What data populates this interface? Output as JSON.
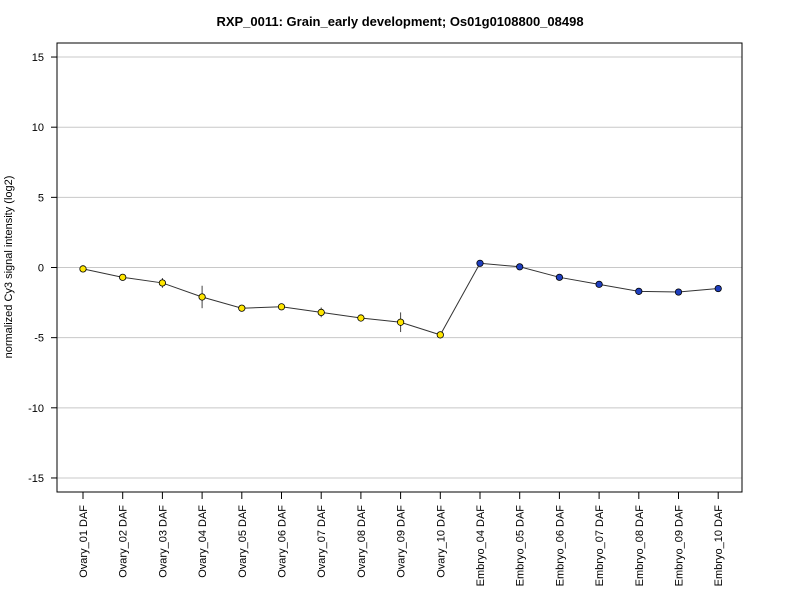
{
  "chart_data": {
    "type": "line",
    "title": "RXP_0011: Grain_early development; Os01g0108800_08498",
    "xlabel": "",
    "ylabel": "normalized Cy3 signal intensity (log2)",
    "ylim": [
      -16,
      16
    ],
    "yticks": [
      15,
      10,
      5,
      0,
      -5,
      -10,
      -15
    ],
    "grid": "horizontal",
    "categories": [
      "Ovary_01 DAF",
      "Ovary_02 DAF",
      "Ovary_03 DAF",
      "Ovary_04 DAF",
      "Ovary_05 DAF",
      "Ovary_06 DAF",
      "Ovary_07 DAF",
      "Ovary_08 DAF",
      "Ovary_09 DAF",
      "Ovary_10 DAF",
      "Embryo_04 DAF",
      "Embryo_05 DAF",
      "Embryo_06 DAF",
      "Embryo_07 DAF",
      "Embryo_08 DAF",
      "Embryo_09 DAF",
      "Embryo_10 DAF"
    ],
    "values": [
      -0.1,
      -0.7,
      -1.1,
      -2.1,
      -2.9,
      -2.8,
      -3.2,
      -3.6,
      -3.9,
      -4.8,
      0.3,
      0.05,
      -0.7,
      -1.2,
      -1.7,
      -1.75,
      -1.5
    ],
    "errors": [
      0.2,
      0.2,
      0.35,
      0.8,
      0.2,
      0.2,
      0.35,
      0.2,
      0.7,
      0.2,
      0.2,
      0.2,
      0.15,
      0.15,
      0.15,
      0.15,
      0.15
    ],
    "point_colors": [
      "#ffe600",
      "#ffe600",
      "#ffe600",
      "#ffe600",
      "#ffe600",
      "#ffe600",
      "#ffe600",
      "#ffe600",
      "#ffe600",
      "#ffe600",
      "#1f3fbf",
      "#1f3fbf",
      "#1f3fbf",
      "#1f3fbf",
      "#1f3fbf",
      "#1f3fbf",
      "#1f3fbf"
    ],
    "line_color": "#333333",
    "grid_color": "#c8c8c8"
  }
}
